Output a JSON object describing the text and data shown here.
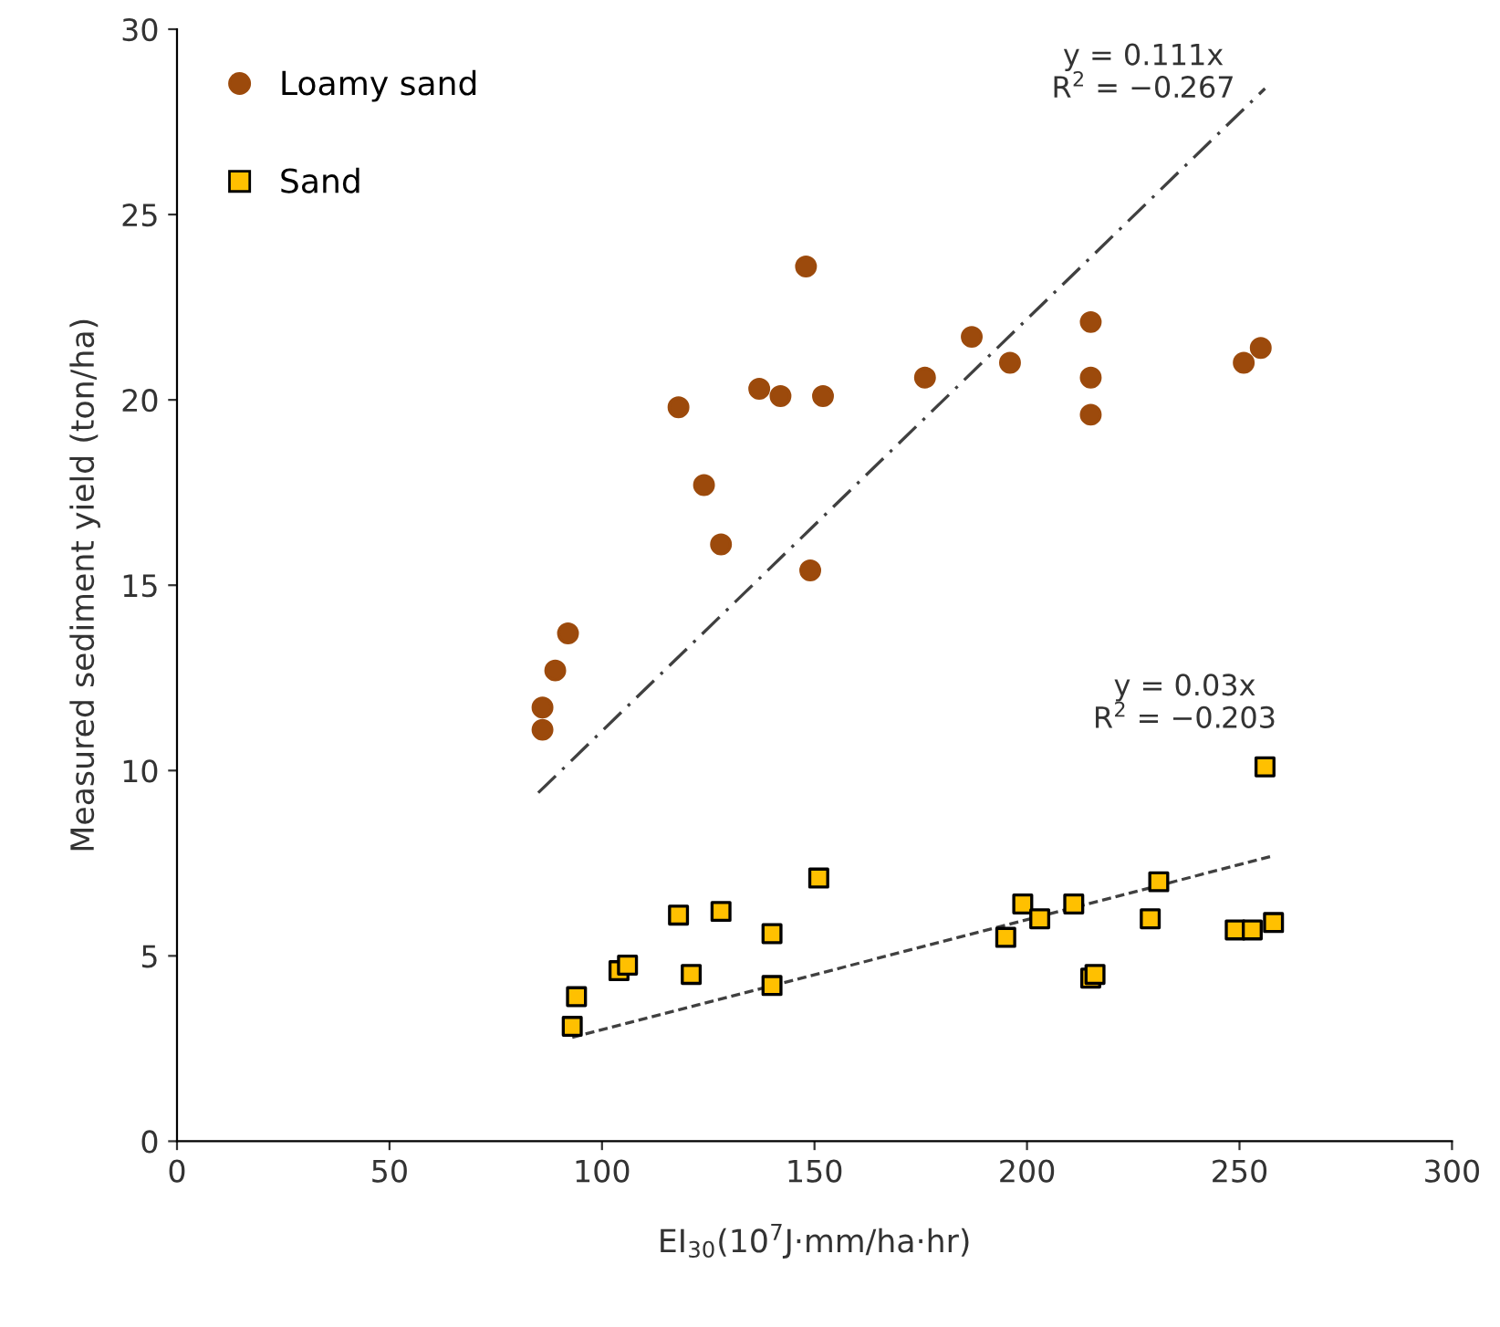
{
  "chart_data": {
    "type": "scatter",
    "xlabel": "EI$_{30}$(10$^{7}$J·mm/ha·hr)",
    "ylabel": "Measured sediment yield (ton/ha)",
    "xlim": [
      0,
      300
    ],
    "ylim": [
      0,
      30
    ],
    "xticks": [
      0,
      50,
      100,
      150,
      200,
      250,
      300
    ],
    "yticks": [
      0,
      5,
      10,
      15,
      20,
      25,
      30
    ],
    "grid": false,
    "legend": "top left",
    "series": [
      {
        "name": "Loamy sand",
        "marker": "circle",
        "color": "#9c4a0c",
        "x": [
          86,
          86,
          89,
          92,
          118,
          124,
          128,
          137,
          142,
          148,
          149,
          152,
          176,
          187,
          196,
          215,
          215,
          215,
          251,
          255
        ],
        "values": [
          11.1,
          11.7,
          12.7,
          13.7,
          19.8,
          17.7,
          16.1,
          20.3,
          20.1,
          23.6,
          15.4,
          20.1,
          20.6,
          21.7,
          21.0,
          22.1,
          20.6,
          19.6,
          21.0,
          21.4
        ]
      },
      {
        "name": "Sand",
        "marker": "square",
        "color": "#ffc000",
        "x": [
          93,
          94,
          104,
          106,
          118,
          121,
          128,
          140,
          140,
          151,
          195,
          199,
          203,
          211,
          215,
          216,
          229,
          231,
          249,
          253,
          256,
          258
        ],
        "values": [
          3.1,
          3.9,
          4.6,
          4.75,
          6.1,
          4.5,
          6.2,
          5.6,
          4.2,
          7.1,
          5.5,
          6.4,
          6.0,
          6.4,
          4.4,
          4.5,
          6.0,
          7.0,
          5.7,
          5.7,
          10.1,
          5.9
        ]
      },
      {
        "type": "line",
        "line_style": "dashed",
        "color": "#404040",
        "x": [
          85,
          256
        ],
        "values": [
          9.4,
          28.4
        ]
      },
      {
        "type": "line",
        "line_style": "dotted",
        "color": "#404040",
        "x": [
          93,
          258
        ],
        "values": [
          2.8,
          7.7
        ]
      }
    ],
    "annotations": [
      "y = 0.111x\nR$^{2}$ = −0.267",
      "y = 0.03x\nR$^{2}$ = −0.203"
    ]
  }
}
